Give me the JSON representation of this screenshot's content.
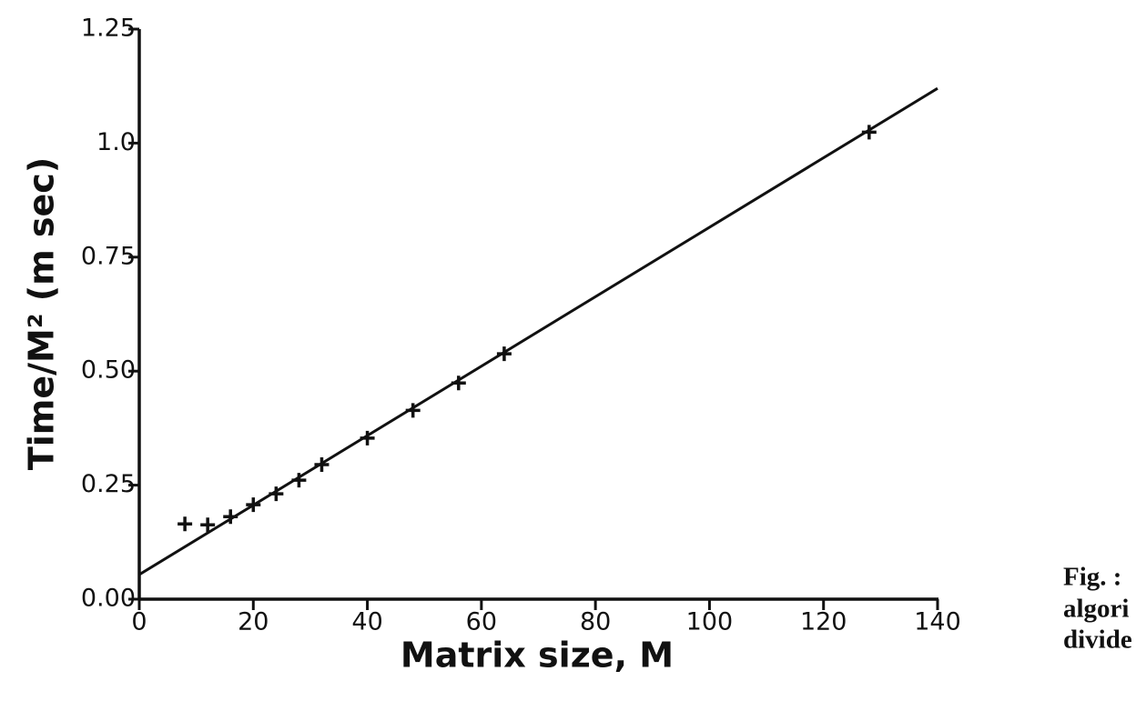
{
  "chart_data": {
    "type": "scatter",
    "xlabel": "Matrix size, M",
    "ylabel": "Time/M² (m sec)",
    "points": {
      "x": [
        8,
        12,
        16,
        20,
        24,
        28,
        32,
        40,
        48,
        56,
        64,
        128
      ],
      "values": [
        0.165,
        0.163,
        0.181,
        0.207,
        0.231,
        0.261,
        0.295,
        0.353,
        0.414,
        0.474,
        0.538,
        1.024
      ]
    },
    "fit_line": {
      "x": [
        0,
        140
      ],
      "values": [
        0.054,
        1.12
      ]
    },
    "color": "#111111",
    "xlim": [
      0,
      140
    ],
    "xticks": [
      0,
      20,
      40,
      60,
      80,
      100,
      120,
      140
    ],
    "ylim": [
      0,
      1.25
    ],
    "yticks": [
      {
        "value": 0,
        "label": "0.00"
      },
      0.25,
      {
        "value": 0.5,
        "label": "0.50"
      },
      0.75,
      {
        "value": 1,
        "label": "1.0"
      },
      1.25
    ],
    "caption_fragments": [
      "Fig. :",
      "algori",
      "divide"
    ]
  }
}
